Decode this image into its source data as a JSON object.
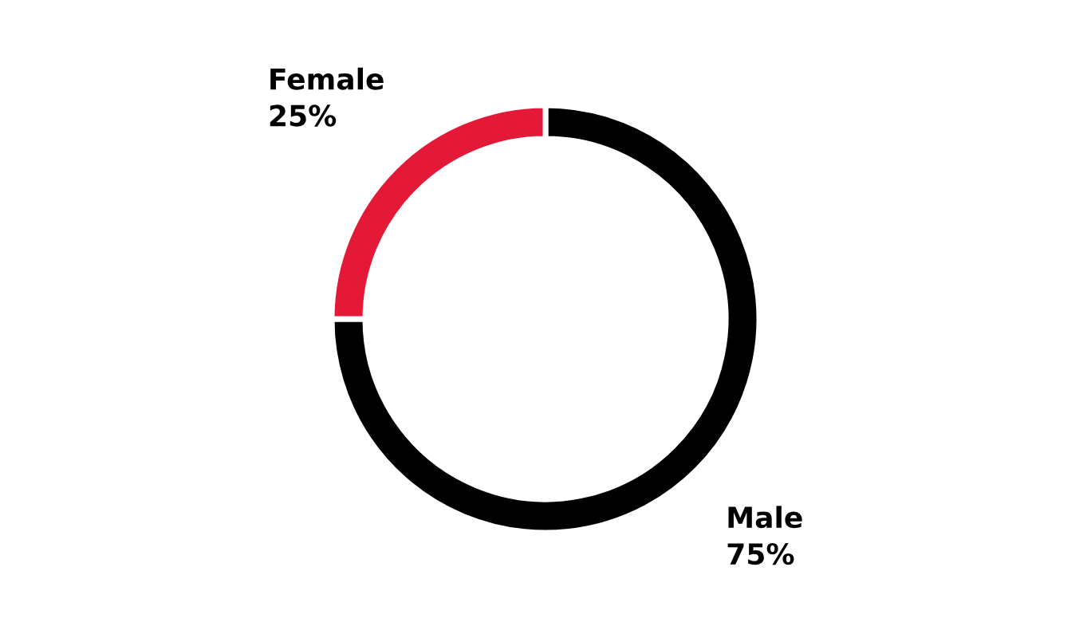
{
  "chart_data": {
    "type": "donut",
    "categories": [
      "Male",
      "Female"
    ],
    "values": [
      75,
      25
    ],
    "colors": [
      "#000000",
      "#e31937"
    ],
    "value_labels": [
      "75%",
      "25%"
    ]
  }
}
